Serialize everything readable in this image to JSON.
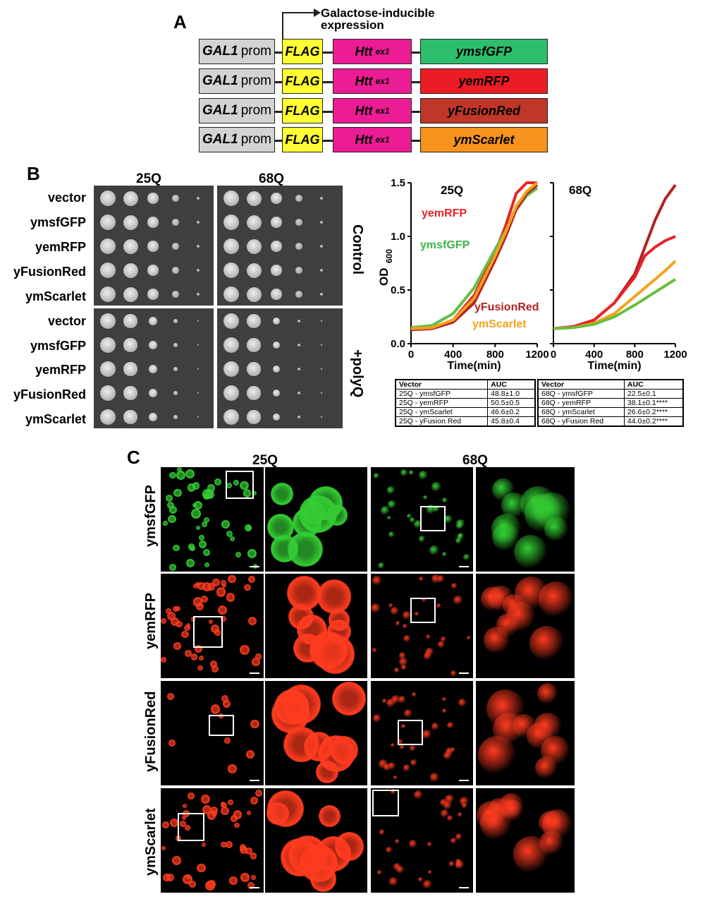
{
  "panels": {
    "a": "A",
    "b": "B",
    "c": "C"
  },
  "panel_a": {
    "arrow_label_line1": "Galactose-inducible",
    "arrow_label_line2": "expression",
    "constructs": [
      {
        "prom_gene": "GAL1",
        "prom_word": "prom",
        "tag": "FLAG",
        "htt": "Htt",
        "htt_sup": "ex1",
        "fp": "ymsfGFP",
        "fp_color": "#2dbe6c"
      },
      {
        "prom_gene": "GAL1",
        "prom_word": "prom",
        "tag": "FLAG",
        "htt": "Htt",
        "htt_sup": "ex1",
        "fp": "yemRFP",
        "fp_color": "#ec1c24"
      },
      {
        "prom_gene": "GAL1",
        "prom_word": "prom",
        "tag": "FLAG",
        "htt": "Htt",
        "htt_sup": "ex1",
        "fp": "yFusionRed",
        "fp_color": "#c0372a"
      },
      {
        "prom_gene": "GAL1",
        "prom_word": "prom",
        "tag": "FLAG",
        "htt": "Htt",
        "htt_sup": "ex1",
        "fp": "ymScarlet",
        "fp_color": "#f7941d"
      }
    ]
  },
  "panel_b": {
    "col_heads": [
      "25Q",
      "68Q"
    ],
    "row_labels": [
      "vector",
      "ymsfGFP",
      "yemRFP",
      "yFusionRed",
      "ymScarlet"
    ],
    "condition_labels": [
      "Control",
      "+polyQ"
    ],
    "growth": {
      "ylabel": "OD",
      "ylabel_sub": "600",
      "xlabel": "Time(min)",
      "y_ticks": [
        "0.0",
        "0.5",
        "1.0",
        "1.5"
      ],
      "x_ticks": [
        "0",
        "400",
        "800",
        "1200"
      ],
      "panel_titles": [
        "25Q",
        "68Q"
      ],
      "legend_25q": [
        {
          "name": "yemRFP",
          "color": "#e8232a"
        },
        {
          "name": "ymsfGFP",
          "color": "#3cb54a"
        },
        {
          "name": "yFusionRed",
          "color": "#b22222"
        },
        {
          "name": "ymScarlet",
          "color": "#f7a11a"
        }
      ]
    },
    "tables": [
      {
        "headers": [
          "Vector",
          "AUC"
        ],
        "rows": [
          [
            "25Q - ymsfGFP",
            "48.8±1.0"
          ],
          [
            "25Q - yemRFP",
            "50.5±0.5"
          ],
          [
            "25Q - ymScarlet",
            "46.6±0.2"
          ],
          [
            "25Q - yFusion Red",
            "45.8±0.4"
          ]
        ]
      },
      {
        "headers": [
          "Vector",
          "AUC"
        ],
        "rows": [
          [
            "68Q - ymsfGFP",
            "22.5±0.1"
          ],
          [
            "68Q - yemRFP",
            "38.1±0.1****"
          ],
          [
            "68Q - ymScarlet",
            "26.6±0.2****"
          ],
          [
            "68Q - yFusion Red",
            "44.0±0.2****"
          ]
        ]
      }
    ]
  },
  "chart_data": [
    {
      "type": "line",
      "title": "25Q",
      "xlabel": "Time(min)",
      "ylabel": "OD600",
      "xlim": [
        0,
        1200
      ],
      "ylim": [
        0,
        1.5
      ],
      "x": [
        0,
        200,
        400,
        600,
        800,
        900,
        1000,
        1100,
        1200
      ],
      "series": [
        {
          "name": "yemRFP",
          "color": "#e8232a",
          "values": [
            0.13,
            0.15,
            0.22,
            0.45,
            0.85,
            1.1,
            1.4,
            1.5,
            1.5
          ]
        },
        {
          "name": "ymsfGFP",
          "color": "#5fbf4a",
          "values": [
            0.15,
            0.17,
            0.28,
            0.52,
            0.88,
            1.05,
            1.25,
            1.38,
            1.45
          ]
        },
        {
          "name": "yFusionRed",
          "color": "#b22222",
          "values": [
            0.13,
            0.14,
            0.2,
            0.38,
            0.78,
            1.0,
            1.25,
            1.4,
            1.48
          ]
        },
        {
          "name": "ymScarlet",
          "color": "#f7a11a",
          "values": [
            0.14,
            0.15,
            0.22,
            0.42,
            0.82,
            1.04,
            1.28,
            1.42,
            1.5
          ]
        }
      ]
    },
    {
      "type": "line",
      "title": "68Q",
      "xlabel": "Time(min)",
      "ylabel": "OD600",
      "xlim": [
        0,
        1200
      ],
      "ylim": [
        0,
        1.5
      ],
      "x": [
        0,
        200,
        400,
        600,
        800,
        900,
        1000,
        1100,
        1200
      ],
      "series": [
        {
          "color": "#b22222",
          "values": [
            0.14,
            0.16,
            0.22,
            0.38,
            0.65,
            0.9,
            1.15,
            1.35,
            1.48
          ]
        },
        {
          "color": "#e8232a",
          "values": [
            0.14,
            0.16,
            0.22,
            0.38,
            0.62,
            0.82,
            0.9,
            0.96,
            1.0
          ]
        },
        {
          "color": "#f7a11a",
          "values": [
            0.14,
            0.15,
            0.19,
            0.28,
            0.44,
            0.52,
            0.6,
            0.68,
            0.77
          ]
        },
        {
          "color": "#6abf3b",
          "values": [
            0.14,
            0.15,
            0.18,
            0.25,
            0.36,
            0.42,
            0.48,
            0.54,
            0.6
          ]
        }
      ]
    }
  ],
  "panel_c": {
    "col_heads": [
      "25Q",
      "68Q"
    ],
    "row_labels": [
      "ymsfGFP",
      "yemRFP",
      "yFusionRed",
      "ymScarlet"
    ],
    "row_colors": [
      "#33cc33",
      "#ff3b1f",
      "#ff3b1f",
      "#ff3b1f"
    ]
  }
}
